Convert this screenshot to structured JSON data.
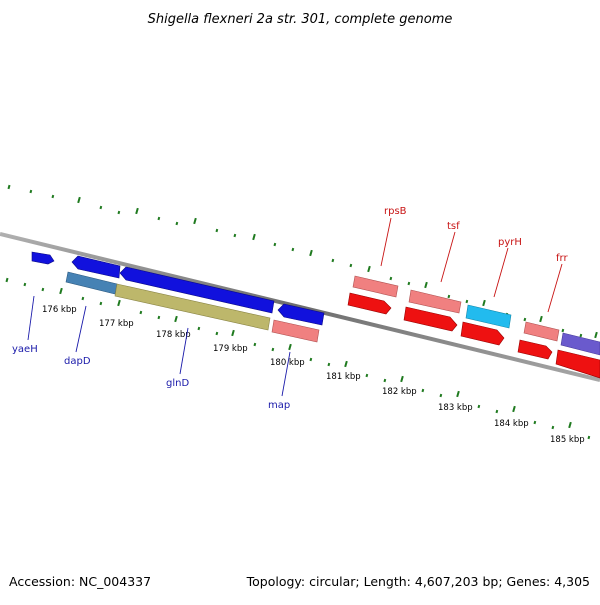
{
  "title": "Shigella flexneri 2a str. 301, complete genome",
  "footer": {
    "accession": "Accession: NC_004337",
    "summary": "Topology: circular; Length: 4,607,203 bp; Genes: 4,305"
  },
  "colors": {
    "backbone": "#808080",
    "ticks": "#1f7a1f",
    "forward_cds": "#ee1111",
    "forward_light": "#f08080",
    "forward_cyan": "#22bbee",
    "forward_purple": "#6a5acd",
    "reverse_cds": "#1111dd",
    "reverse_steel": "#4682b4",
    "reverse_khaki": "#bdb76b",
    "reverse_light": "#f08080",
    "label_reverse": "#1a1aaa",
    "label_forward": "#c81414"
  },
  "map": {
    "kbp_labels": [
      "176 kbp",
      "177 kbp",
      "178 kbp",
      "179 kbp",
      "180 kbp",
      "181 kbp",
      "182 kbp",
      "183 kbp",
      "184 kbp",
      "185 kbp"
    ],
    "reverse_gene_labels": [
      "yaeH",
      "dapD",
      "glnD",
      "map"
    ],
    "forward_gene_labels": [
      "rpsB",
      "tsf",
      "pyrH",
      "frr"
    ]
  }
}
